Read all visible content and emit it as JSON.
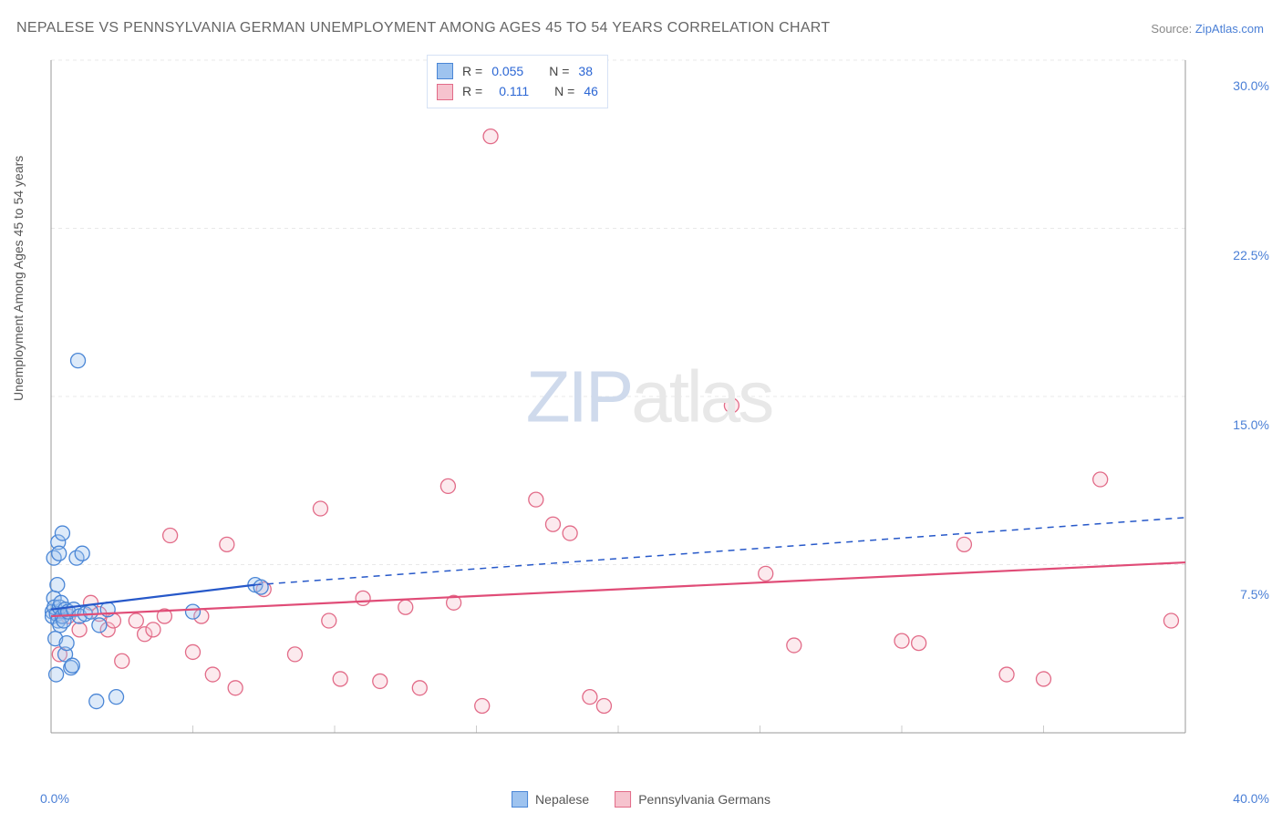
{
  "title": "NEPALESE VS PENNSYLVANIA GERMAN UNEMPLOYMENT AMONG AGES 45 TO 54 YEARS CORRELATION CHART",
  "source_label": "Source:",
  "source_name": "ZipAtlas.com",
  "ylabel": "Unemployment Among Ages 45 to 54 years",
  "watermark": {
    "part1": "ZIP",
    "part2": "atlas"
  },
  "chart": {
    "type": "scatter",
    "xlim": [
      0,
      40
    ],
    "ylim": [
      0,
      30
    ],
    "xtick_labels": [
      "0.0%",
      "40.0%"
    ],
    "ytick_labels": [
      "7.5%",
      "15.0%",
      "22.5%",
      "30.0%"
    ],
    "ytick_values": [
      7.5,
      15.0,
      22.5,
      30.0
    ],
    "grid_color": "#e8e8e8",
    "axis_color": "#999999",
    "background_color": "#ffffff",
    "tick_fontsize": 14,
    "label_fontsize": 14,
    "title_fontsize": 16,
    "marker_radius": 8,
    "marker_fill_opacity": 0.35,
    "marker_stroke_width": 1.3,
    "line_width": 2.2
  },
  "series": [
    {
      "name": "Nepalese",
      "fill": "#9ec3ef",
      "stroke": "#4a86d6",
      "line_color": "#2658c9",
      "R": "0.055",
      "N": "38",
      "trend": {
        "x1": 0,
        "y1": 5.5,
        "x2": 7.2,
        "y2": 6.6,
        "dash_to_x": 40,
        "dash_to_y": 9.6
      },
      "points": [
        [
          0.05,
          5.4
        ],
        [
          0.05,
          5.2
        ],
        [
          0.1,
          6.0
        ],
        [
          0.1,
          7.8
        ],
        [
          0.12,
          5.6
        ],
        [
          0.15,
          4.2
        ],
        [
          0.18,
          2.6
        ],
        [
          0.2,
          5.3
        ],
        [
          0.22,
          6.6
        ],
        [
          0.25,
          8.5
        ],
        [
          0.25,
          5.0
        ],
        [
          0.28,
          8.0
        ],
        [
          0.3,
          5.6
        ],
        [
          0.32,
          4.8
        ],
        [
          0.35,
          5.8
        ],
        [
          0.4,
          5.2
        ],
        [
          0.4,
          8.9
        ],
        [
          0.45,
          5.0
        ],
        [
          0.5,
          3.5
        ],
        [
          0.5,
          5.5
        ],
        [
          0.55,
          4.0
        ],
        [
          0.6,
          5.4
        ],
        [
          0.7,
          2.9
        ],
        [
          0.75,
          3.0
        ],
        [
          0.8,
          5.5
        ],
        [
          0.9,
          7.8
        ],
        [
          0.95,
          16.6
        ],
        [
          1.0,
          5.2
        ],
        [
          1.1,
          8.0
        ],
        [
          1.2,
          5.3
        ],
        [
          1.4,
          5.4
        ],
        [
          1.6,
          1.4
        ],
        [
          1.7,
          4.8
        ],
        [
          2.0,
          5.5
        ],
        [
          2.3,
          1.6
        ],
        [
          5.0,
          5.4
        ],
        [
          7.2,
          6.6
        ],
        [
          7.4,
          6.5
        ]
      ]
    },
    {
      "name": "Pennsylvania Germans",
      "fill": "#f6c3ce",
      "stroke": "#e26b88",
      "line_color": "#e04c77",
      "R": "0.111",
      "N": "46",
      "trend": {
        "x1": 0,
        "y1": 5.2,
        "x2": 40,
        "y2": 7.6
      },
      "points": [
        [
          0.3,
          3.5
        ],
        [
          0.6,
          5.2
        ],
        [
          1.0,
          4.6
        ],
        [
          1.4,
          5.8
        ],
        [
          1.7,
          5.3
        ],
        [
          2.0,
          4.6
        ],
        [
          2.2,
          5.0
        ],
        [
          2.5,
          3.2
        ],
        [
          3.0,
          5.0
        ],
        [
          3.3,
          4.4
        ],
        [
          3.6,
          4.6
        ],
        [
          4.0,
          5.2
        ],
        [
          4.2,
          8.8
        ],
        [
          5.0,
          3.6
        ],
        [
          5.3,
          5.2
        ],
        [
          5.7,
          2.6
        ],
        [
          6.2,
          8.4
        ],
        [
          6.5,
          2.0
        ],
        [
          7.5,
          6.4
        ],
        [
          8.6,
          3.5
        ],
        [
          9.5,
          10.0
        ],
        [
          9.8,
          5.0
        ],
        [
          10.2,
          2.4
        ],
        [
          11.0,
          6.0
        ],
        [
          11.6,
          2.3
        ],
        [
          12.5,
          5.6
        ],
        [
          13.0,
          2.0
        ],
        [
          14.0,
          11.0
        ],
        [
          14.2,
          5.8
        ],
        [
          15.2,
          1.2
        ],
        [
          15.5,
          26.6
        ],
        [
          17.1,
          10.4
        ],
        [
          17.7,
          9.3
        ],
        [
          18.3,
          8.9
        ],
        [
          19.0,
          1.6
        ],
        [
          19.5,
          1.2
        ],
        [
          24.0,
          14.6
        ],
        [
          25.2,
          7.1
        ],
        [
          26.2,
          3.9
        ],
        [
          30.0,
          4.1
        ],
        [
          30.6,
          4.0
        ],
        [
          32.2,
          8.4
        ],
        [
          33.7,
          2.6
        ],
        [
          35.0,
          2.4
        ],
        [
          37.0,
          11.3
        ],
        [
          39.5,
          5.0
        ]
      ]
    }
  ],
  "rn_legend": {
    "rows": [
      {
        "swatch_fill": "#9ec3ef",
        "swatch_stroke": "#4a86d6",
        "r_label": "R =",
        "r_val": "0.055",
        "n_label": "N =",
        "n_val": "38"
      },
      {
        "swatch_fill": "#f6c3ce",
        "swatch_stroke": "#e26b88",
        "r_label": "R =",
        "r_val": "0.111",
        "n_label": "N =",
        "n_val": "46"
      }
    ]
  },
  "bottom_legend": [
    {
      "swatch_fill": "#9ec3ef",
      "swatch_stroke": "#4a86d6",
      "label": "Nepalese"
    },
    {
      "swatch_fill": "#f6c3ce",
      "swatch_stroke": "#e26b88",
      "label": "Pennsylvania Germans"
    }
  ]
}
